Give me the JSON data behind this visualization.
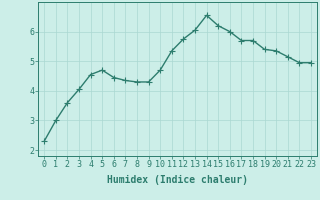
{
  "x": [
    0,
    1,
    2,
    3,
    4,
    5,
    6,
    7,
    8,
    9,
    10,
    11,
    12,
    13,
    14,
    15,
    16,
    17,
    18,
    19,
    20,
    21,
    22,
    23
  ],
  "y": [
    2.3,
    3.0,
    3.6,
    4.05,
    4.55,
    4.7,
    4.45,
    4.35,
    4.3,
    4.3,
    4.7,
    5.35,
    5.75,
    6.05,
    6.55,
    6.2,
    6.0,
    5.7,
    5.7,
    5.4,
    5.35,
    5.15,
    4.95,
    4.95
  ],
  "line_color": "#2d7d6e",
  "marker": "+",
  "marker_size": 4,
  "bg_color": "#cceee8",
  "grid_color": "#aad8d2",
  "xlabel": "Humidex (Indice chaleur)",
  "xlim": [
    -0.5,
    23.5
  ],
  "ylim": [
    1.8,
    7.0
  ],
  "yticks": [
    2,
    3,
    4,
    5,
    6
  ],
  "xticks": [
    0,
    1,
    2,
    3,
    4,
    5,
    6,
    7,
    8,
    9,
    10,
    11,
    12,
    13,
    14,
    15,
    16,
    17,
    18,
    19,
    20,
    21,
    22,
    23
  ],
  "tick_color": "#2d7d6e",
  "xlabel_fontsize": 7,
  "tick_fontsize": 6,
  "linewidth": 1.0,
  "markeredgewidth": 0.8
}
